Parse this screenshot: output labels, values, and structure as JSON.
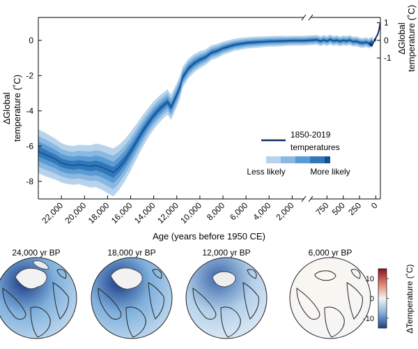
{
  "chart_data": [
    {
      "type": "area",
      "xlabel": "Age (years before 1950 CE)",
      "ylabel_left": [
        "∆Global",
        "temperature (˚C)"
      ],
      "ylabel_right": [
        "∆Global",
        "temperature (˚C)"
      ],
      "ylim": [
        -9,
        1.3
      ],
      "y_ticks_left": [
        0,
        -2,
        -4,
        -6,
        -8
      ],
      "y_tick_labels_left": [
        "0",
        "-2",
        "-4",
        "-6",
        "-8"
      ],
      "y_ticks_right": [
        1,
        0,
        -1
      ],
      "y_tick_labels_right": [
        "1",
        "0",
        "-1"
      ],
      "x_ticks_main": [
        22000,
        20000,
        18000,
        16000,
        14000,
        12000,
        10000,
        8000,
        6000,
        4000,
        2000
      ],
      "x_tick_labels_main": [
        "22,000",
        "20,000",
        "18,000",
        "16,000",
        "14,000",
        "12,000",
        "10,000",
        "8,000",
        "6,000",
        "4,000",
        "2,000"
      ],
      "x_ticks_recent": [
        750,
        500,
        250,
        0
      ],
      "x_tick_labels_recent": [
        "750",
        "500",
        "250",
        "0"
      ],
      "legend": {
        "line_label": [
          "1850-2019",
          "temperatures"
        ],
        "scale_left": "Less likely",
        "scale_right": "More likely"
      },
      "colors": {
        "band_outer": "#b8d4ec",
        "band_mid1": "#8ab8e0",
        "band_mid2": "#5b9bd3",
        "band_inner": "#3178bb",
        "median": "#16508f",
        "instrumental": "#0c2c66"
      },
      "series": [
        {
          "kind": "reconstruction",
          "x": [
            24000,
            23500,
            23000,
            22500,
            22000,
            21500,
            21000,
            20500,
            20000,
            19500,
            19000,
            18500,
            18000,
            17500,
            17000,
            16500,
            16000,
            15500,
            15000,
            14500,
            14000,
            13500,
            13000,
            12800,
            12500,
            12000,
            11700,
            11500,
            11000,
            10500,
            10000,
            9500,
            9000,
            8500,
            8000,
            7500,
            7000,
            6500,
            6000,
            5500,
            5000,
            4500,
            4000,
            3500,
            3000,
            2500,
            2000,
            1500,
            1000
          ],
          "y": [
            -6.3,
            -6.45,
            -6.6,
            -6.75,
            -6.95,
            -7.05,
            -7.1,
            -7.05,
            -7.1,
            -7.15,
            -7.1,
            -7.2,
            -7.35,
            -7.5,
            -7.2,
            -6.8,
            -6.3,
            -5.75,
            -5.2,
            -4.7,
            -4.25,
            -3.9,
            -3.6,
            -3.5,
            -3.8,
            -3.1,
            -2.6,
            -2.1,
            -1.6,
            -1.3,
            -1.1,
            -0.95,
            -0.7,
            -0.6,
            -0.45,
            -0.35,
            -0.25,
            -0.2,
            -0.15,
            -0.12,
            -0.1,
            -0.08,
            -0.06,
            -0.05,
            -0.04,
            -0.03,
            -0.02,
            -0.02,
            -0.02
          ],
          "spread": [
            0.62,
            0.62,
            0.6,
            0.58,
            0.56,
            0.55,
            0.55,
            0.56,
            0.58,
            0.6,
            0.62,
            0.64,
            0.66,
            0.68,
            0.64,
            0.6,
            0.55,
            0.5,
            0.46,
            0.42,
            0.4,
            0.38,
            0.36,
            0.36,
            0.36,
            0.34,
            0.32,
            0.3,
            0.28,
            0.26,
            0.24,
            0.22,
            0.21,
            0.2,
            0.19,
            0.18,
            0.17,
            0.17,
            0.16,
            0.16,
            0.16,
            0.15,
            0.15,
            0.15,
            0.15,
            0.14,
            0.14,
            0.14,
            0.14
          ]
        },
        {
          "kind": "recent",
          "x": [
            1000,
            900,
            850,
            800,
            750,
            700,
            650,
            600,
            550,
            500,
            450,
            400,
            350,
            300,
            250,
            200,
            150,
            100,
            75,
            50
          ],
          "y": [
            -0.02,
            0.03,
            -0.05,
            0.02,
            -0.04,
            0.05,
            -0.03,
            0.01,
            -0.06,
            0.0,
            -0.04,
            0.02,
            -0.08,
            -0.05,
            -0.12,
            -0.15,
            -0.1,
            -0.18,
            -0.1,
            -0.05
          ],
          "spread": [
            0.14,
            0.14,
            0.14,
            0.14,
            0.14,
            0.14,
            0.14,
            0.14,
            0.14,
            0.14,
            0.14,
            0.14,
            0.14,
            0.14,
            0.14,
            0.14,
            0.14,
            0.14,
            0.14,
            0.14
          ]
        },
        {
          "name": "1850-2019 temperatures",
          "kind": "instrumental",
          "x": [
            100,
            90,
            80,
            70,
            60,
            50,
            40,
            30,
            20,
            10,
            0,
            -30,
            -50,
            -69
          ],
          "y": [
            -0.25,
            -0.2,
            -0.28,
            -0.22,
            -0.3,
            -0.2,
            -0.15,
            -0.05,
            0.05,
            0.0,
            0.15,
            0.35,
            0.6,
            1.0
          ]
        }
      ]
    },
    {
      "type": "map",
      "panels": [
        {
          "label": "24,000 yr BP",
          "anomaly_level": "strong"
        },
        {
          "label": "18,000 yr BP",
          "anomaly_level": "strong"
        },
        {
          "label": "12,000 yr BP",
          "anomaly_level": "moderate"
        },
        {
          "label": "6,000 yr BP",
          "anomaly_level": "near-zero"
        }
      ],
      "colorbar": {
        "title": "∆Temperature (˚C)",
        "ticks": [
          10,
          0,
          -10
        ],
        "tick_labels": [
          "10",
          "0",
          "-10"
        ],
        "range": [
          -15,
          15
        ]
      }
    }
  ]
}
